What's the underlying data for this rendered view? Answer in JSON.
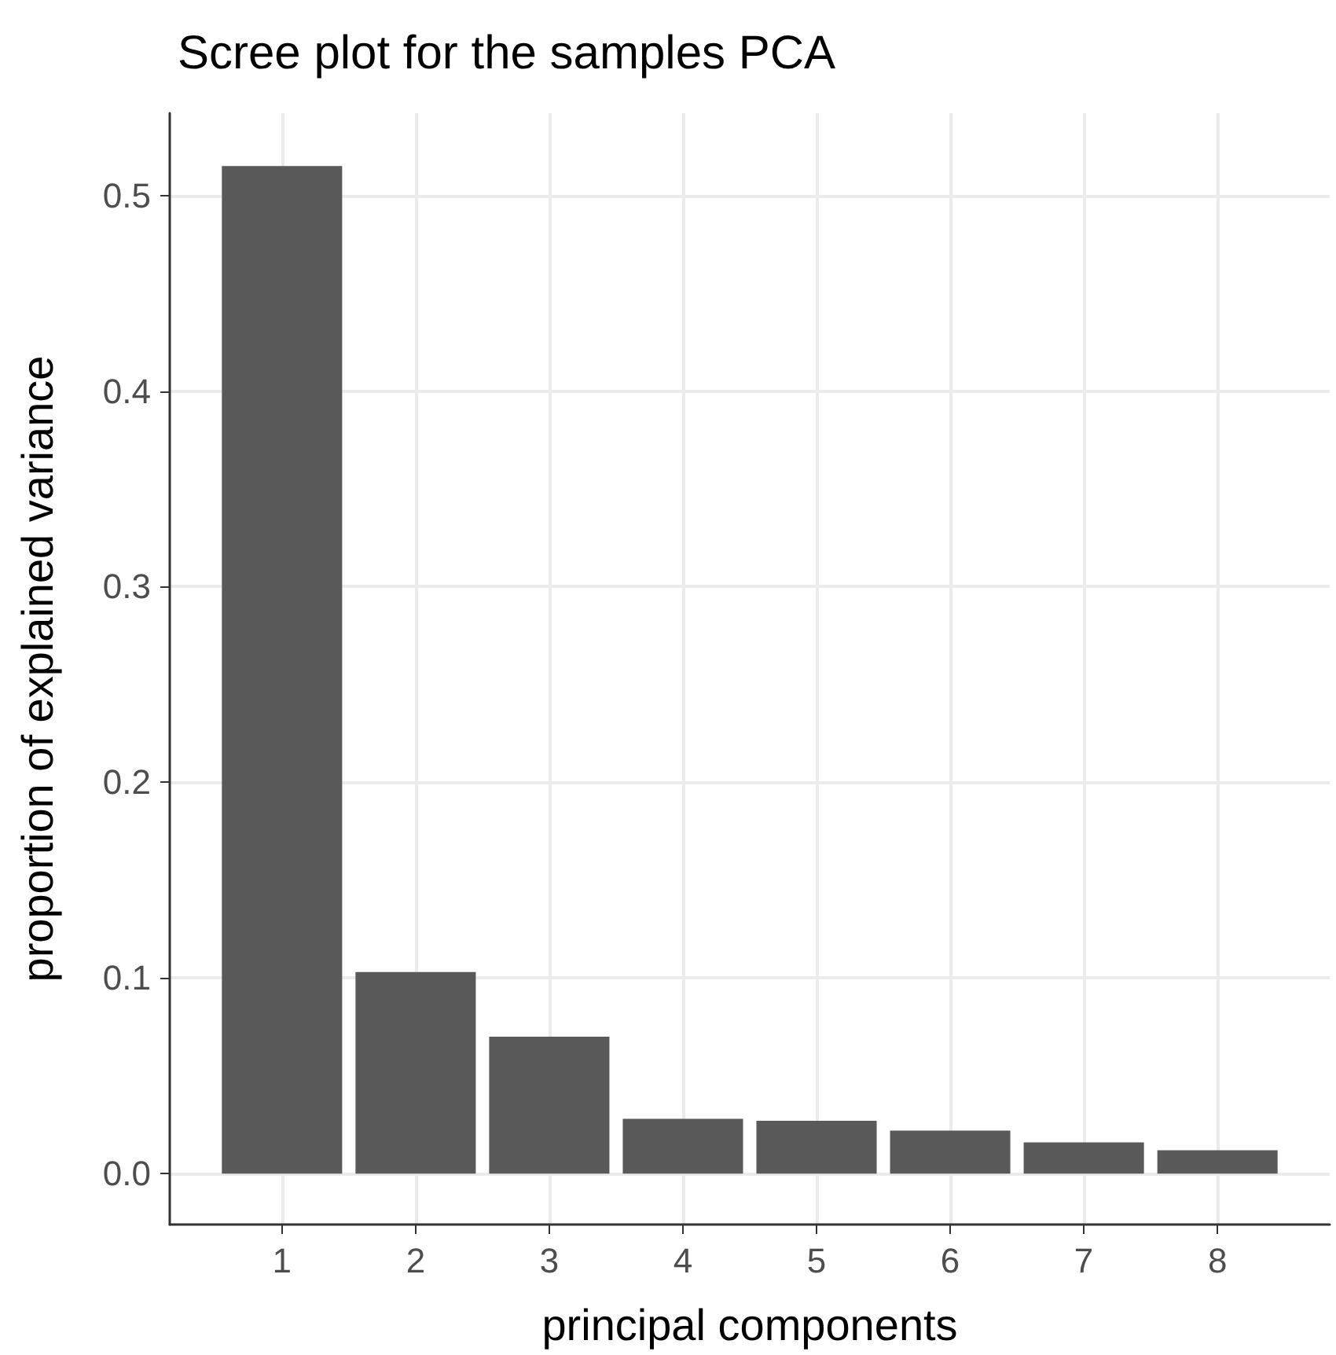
{
  "chart_data": {
    "type": "bar",
    "title": "Scree plot for the samples PCA",
    "xlabel": "principal components",
    "ylabel": "proportion of explained variance",
    "x": [
      1,
      2,
      3,
      4,
      5,
      6,
      7,
      8
    ],
    "values": [
      0.515,
      0.103,
      0.07,
      0.028,
      0.027,
      0.022,
      0.016,
      0.012
    ],
    "color": "#595959",
    "xlim": [
      0.16,
      8.84
    ],
    "xticks": [
      1,
      2,
      3,
      4,
      5,
      6,
      7,
      8
    ],
    "ylim": [
      -0.026,
      0.542
    ],
    "yticks": [
      {
        "value": 0,
        "label": "0.0"
      },
      0.1,
      0.2,
      0.3,
      0.4,
      0.5
    ],
    "grid": true
  }
}
